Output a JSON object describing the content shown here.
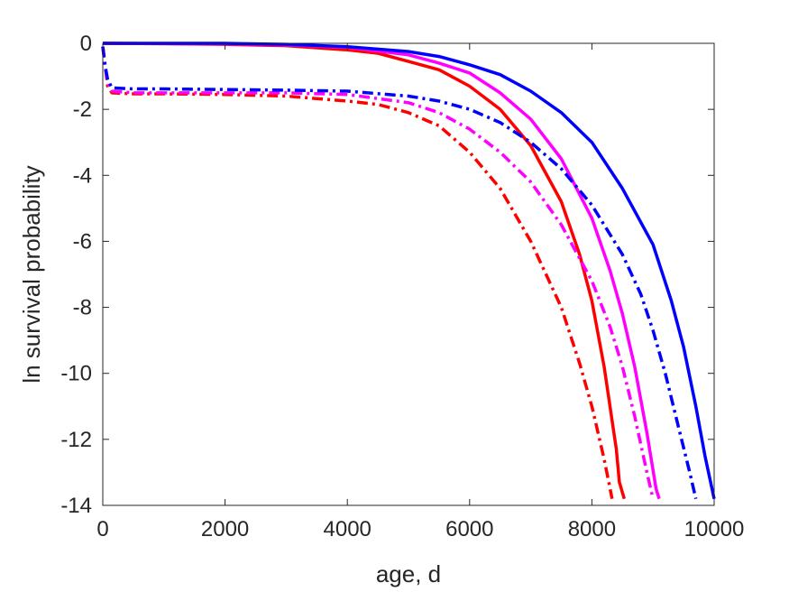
{
  "chart_data": {
    "type": "line",
    "title": "",
    "xlabel": "age, d",
    "ylabel": "ln survival probability",
    "xlim": [
      0,
      10000
    ],
    "ylim": [
      -14,
      0
    ],
    "xticks": [
      0,
      2000,
      4000,
      6000,
      8000,
      10000
    ],
    "yticks": [
      0,
      -2,
      -4,
      -6,
      -8,
      -10,
      -12,
      -14
    ],
    "grid": false,
    "legend": "none",
    "series": [
      {
        "color": "#ff0000",
        "style": "solid",
        "points": [
          [
            0,
            0
          ],
          [
            1000,
            -0.01
          ],
          [
            2000,
            -0.03
          ],
          [
            3000,
            -0.07
          ],
          [
            4000,
            -0.2
          ],
          [
            4500,
            -0.3
          ],
          [
            5000,
            -0.55
          ],
          [
            5500,
            -0.8
          ],
          [
            6000,
            -1.3
          ],
          [
            6500,
            -2.0
          ],
          [
            7000,
            -3.1
          ],
          [
            7500,
            -4.8
          ],
          [
            7800,
            -6.4
          ],
          [
            8000,
            -7.8
          ],
          [
            8200,
            -9.8
          ],
          [
            8400,
            -12.3
          ],
          [
            8450,
            -13.3
          ],
          [
            8530,
            -13.8
          ]
        ]
      },
      {
        "color": "#ff00ff",
        "style": "solid",
        "points": [
          [
            0,
            0
          ],
          [
            1000,
            -0.01
          ],
          [
            2000,
            -0.02
          ],
          [
            3000,
            -0.05
          ],
          [
            4000,
            -0.12
          ],
          [
            5000,
            -0.35
          ],
          [
            5500,
            -0.6
          ],
          [
            6000,
            -0.9
          ],
          [
            6500,
            -1.5
          ],
          [
            7000,
            -2.3
          ],
          [
            7500,
            -3.5
          ],
          [
            8000,
            -5.3
          ],
          [
            8300,
            -6.9
          ],
          [
            8500,
            -8.2
          ],
          [
            8700,
            -9.8
          ],
          [
            8900,
            -11.8
          ],
          [
            9050,
            -13.5
          ],
          [
            9100,
            -13.8
          ]
        ]
      },
      {
        "color": "#0000ff",
        "style": "solid",
        "points": [
          [
            0,
            0
          ],
          [
            2000,
            0
          ],
          [
            3000,
            -0.03
          ],
          [
            4000,
            -0.1
          ],
          [
            5000,
            -0.25
          ],
          [
            5500,
            -0.4
          ],
          [
            6000,
            -0.65
          ],
          [
            6500,
            -0.95
          ],
          [
            7000,
            -1.45
          ],
          [
            7500,
            -2.1
          ],
          [
            8000,
            -3.0
          ],
          [
            8500,
            -4.4
          ],
          [
            9000,
            -6.1
          ],
          [
            9300,
            -7.8
          ],
          [
            9500,
            -9.2
          ],
          [
            9700,
            -11.0
          ],
          [
            9850,
            -12.5
          ],
          [
            10000,
            -13.8
          ]
        ]
      },
      {
        "color": "#ff0000",
        "style": "dashdot",
        "points": [
          [
            0,
            -0.1
          ],
          [
            40,
            -0.7
          ],
          [
            80,
            -1.3
          ],
          [
            150,
            -1.5
          ],
          [
            500,
            -1.53
          ],
          [
            1000,
            -1.53
          ],
          [
            2000,
            -1.55
          ],
          [
            3000,
            -1.6
          ],
          [
            4000,
            -1.75
          ],
          [
            4500,
            -1.85
          ],
          [
            5000,
            -2.1
          ],
          [
            5500,
            -2.5
          ],
          [
            6000,
            -3.3
          ],
          [
            6500,
            -4.4
          ],
          [
            7000,
            -6.0
          ],
          [
            7500,
            -8.0
          ],
          [
            7800,
            -9.7
          ],
          [
            8000,
            -11.0
          ],
          [
            8200,
            -12.6
          ],
          [
            8330,
            -13.8
          ]
        ]
      },
      {
        "color": "#ff00ff",
        "style": "dashdot",
        "points": [
          [
            0,
            -0.1
          ],
          [
            40,
            -0.7
          ],
          [
            80,
            -1.2
          ],
          [
            150,
            -1.45
          ],
          [
            500,
            -1.5
          ],
          [
            1000,
            -1.5
          ],
          [
            2000,
            -1.5
          ],
          [
            3000,
            -1.5
          ],
          [
            4000,
            -1.55
          ],
          [
            5000,
            -1.8
          ],
          [
            5500,
            -2.1
          ],
          [
            6000,
            -2.6
          ],
          [
            6500,
            -3.3
          ],
          [
            7000,
            -4.2
          ],
          [
            7500,
            -5.5
          ],
          [
            8000,
            -7.2
          ],
          [
            8300,
            -8.6
          ],
          [
            8500,
            -9.8
          ],
          [
            8700,
            -11.3
          ],
          [
            8900,
            -13.0
          ],
          [
            9000,
            -13.8
          ]
        ]
      },
      {
        "color": "#0000ff",
        "style": "dashdot",
        "points": [
          [
            0,
            -0.1
          ],
          [
            40,
            -0.7
          ],
          [
            80,
            -1.1
          ],
          [
            150,
            -1.35
          ],
          [
            500,
            -1.38
          ],
          [
            1000,
            -1.38
          ],
          [
            2000,
            -1.4
          ],
          [
            3000,
            -1.42
          ],
          [
            4000,
            -1.45
          ],
          [
            5000,
            -1.6
          ],
          [
            5500,
            -1.75
          ],
          [
            6000,
            -2.0
          ],
          [
            6500,
            -2.4
          ],
          [
            7000,
            -3.0
          ],
          [
            7500,
            -3.8
          ],
          [
            8000,
            -4.9
          ],
          [
            8500,
            -6.4
          ],
          [
            8800,
            -7.6
          ],
          [
            9000,
            -8.7
          ],
          [
            9200,
            -10.0
          ],
          [
            9400,
            -11.5
          ],
          [
            9600,
            -13.0
          ],
          [
            9700,
            -13.8
          ]
        ]
      }
    ]
  }
}
